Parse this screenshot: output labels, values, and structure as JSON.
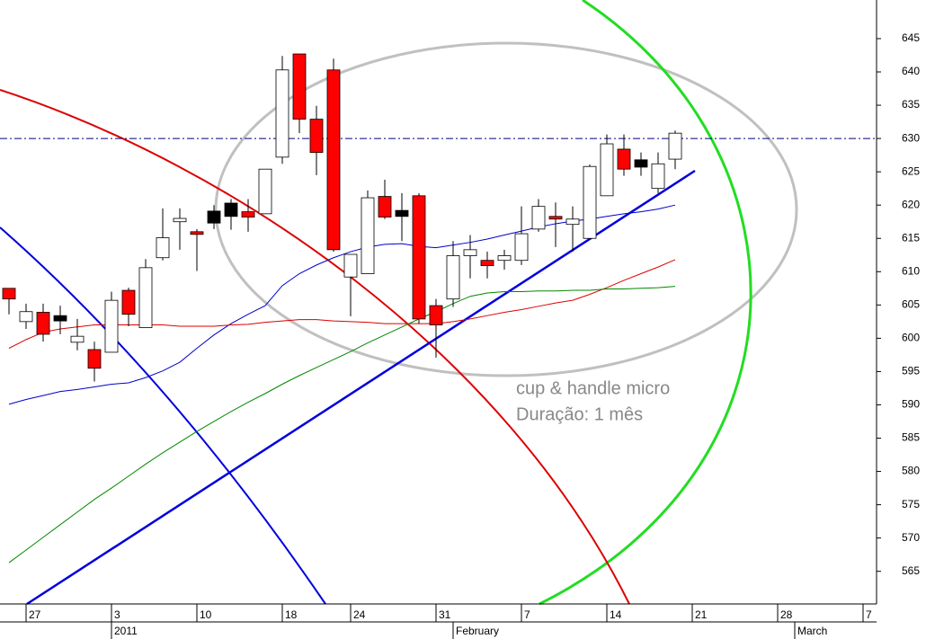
{
  "chart_data": {
    "type": "candlestick",
    "annotations": [
      "cup & handle micro",
      "Duração: 1 mês"
    ],
    "categories": [
      null,
      "27",
      null,
      null,
      null,
      null,
      "3",
      null,
      null,
      null,
      null,
      "10",
      null,
      null,
      null,
      null,
      "18",
      null,
      null,
      null,
      "24",
      null,
      null,
      null,
      null,
      "31",
      null,
      null,
      null,
      null,
      "7",
      null,
      null,
      null,
      null,
      "14",
      null,
      null,
      null,
      null,
      "21",
      null,
      null,
      null,
      null,
      "28",
      null,
      null,
      null,
      null,
      "7"
    ],
    "periods": [
      null,
      null,
      null,
      null,
      null,
      null,
      "2011",
      null,
      null,
      null,
      null,
      null,
      null,
      null,
      null,
      null,
      null,
      null,
      null,
      null,
      null,
      null,
      null,
      null,
      null,
      null,
      "February",
      null,
      null,
      null,
      null,
      null,
      null,
      null,
      null,
      null,
      null,
      null,
      null,
      null,
      null,
      null,
      null,
      null,
      null,
      null,
      "March",
      null,
      null,
      null,
      null
    ],
    "open": [
      607.5,
      602.5,
      603.9,
      603.4,
      599.4,
      598.3,
      597.9,
      607.2,
      601.6,
      612.1,
      617.5,
      616.0,
      619.1,
      620.3,
      619.0,
      618.7,
      627.2,
      642.7,
      632.9,
      640.3,
      609.2,
      609.7,
      621.3,
      619.2,
      621.4,
      604.9,
      605.9,
      612.4,
      611.7,
      611.7,
      611.7,
      616.4,
      618.3,
      617.1,
      615.0,
      621.4,
      628.4,
      626.8,
      622.5,
      626.9,
      null,
      null,
      null,
      null,
      null,
      null,
      null,
      null,
      null,
      null,
      null
    ],
    "high": [
      607.5,
      605.2,
      605.2,
      604.9,
      602.9,
      599.5,
      607.0,
      607.6,
      611.9,
      619.5,
      619.5,
      616.4,
      620.0,
      620.9,
      620.9,
      625.4,
      642.4,
      642.7,
      634.9,
      642.0,
      612.6,
      622.2,
      623.8,
      621.8,
      621.8,
      605.9,
      614.6,
      615.5,
      613.0,
      613.3,
      619.8,
      620.9,
      620.4,
      619.8,
      626.1,
      630.6,
      630.6,
      627.9,
      627.9,
      631.2,
      null,
      null,
      null,
      null,
      null,
      null,
      null,
      null,
      null,
      null,
      null
    ],
    "low": [
      603.6,
      601.4,
      599.5,
      600.6,
      598.2,
      593.5,
      597.9,
      601.8,
      601.6,
      611.7,
      613.3,
      610.1,
      616.4,
      616.3,
      616.0,
      618.7,
      626.2,
      630.8,
      624.5,
      613.0,
      603.3,
      609.7,
      617.9,
      614.6,
      602.2,
      597.1,
      604.7,
      609.0,
      609.0,
      610.3,
      611.0,
      616.0,
      613.7,
      613.0,
      615.0,
      621.4,
      624.4,
      624.4,
      621.8,
      625.4,
      null,
      null,
      null,
      null,
      null,
      null,
      null,
      null,
      null,
      null,
      null
    ],
    "close": [
      605.9,
      604.0,
      600.6,
      602.6,
      600.3,
      595.5,
      605.7,
      603.6,
      610.6,
      615.1,
      618.0,
      615.6,
      617.3,
      618.3,
      618.2,
      625.4,
      640.3,
      632.9,
      627.9,
      613.3,
      612.6,
      621.1,
      618.2,
      618.3,
      602.9,
      602.0,
      612.4,
      613.3,
      610.9,
      612.4,
      615.7,
      619.8,
      617.9,
      617.9,
      625.8,
      629.2,
      625.4,
      625.7,
      626.2,
      630.8,
      null,
      null,
      null,
      null,
      null,
      null,
      null,
      null,
      null,
      null,
      null
    ],
    "body_colors": [
      "#ff0000",
      "#ffffff",
      "#ff0000",
      "#000000",
      "#ffffff",
      "#ff0000",
      "#ffffff",
      "#ff0000",
      "#ffffff",
      "#ffffff",
      "#ffffff",
      "#ff0000",
      "#000000",
      "#000000",
      "#ff0000",
      "#ffffff",
      "#ffffff",
      "#ff0000",
      "#ff0000",
      "#ff0000",
      "#ffffff",
      "#ffffff",
      "#ff0000",
      "#000000",
      "#ff0000",
      "#ff0000",
      "#ffffff",
      "#ffffff",
      "#ff0000",
      "#ffffff",
      "#ffffff",
      "#ffffff",
      "#ff0000",
      "#ffffff",
      "#ffffff",
      "#ffffff",
      "#ff0000",
      "#000000",
      "#ffffff",
      "#ffffff",
      null,
      null,
      null,
      null,
      null,
      null,
      null,
      null,
      null,
      null,
      null
    ],
    "series": [
      {
        "color": "#0000cc",
        "values": [
          590.1,
          590.8,
          591.4,
          592.0,
          592.3,
          592.7,
          593.1,
          593.3,
          594.1,
          595.1,
          596.4,
          598.5,
          600.5,
          602.2,
          603.6,
          604.9,
          607.9,
          609.7,
          611.0,
          612.1,
          613.0,
          613.7,
          614.1,
          614.2,
          613.8,
          613.6,
          614.0,
          614.4,
          614.9,
          615.5,
          616.1,
          616.7,
          617.2,
          617.6,
          617.9,
          618.3,
          618.7,
          619.0,
          619.4,
          620.0,
          null,
          null,
          null,
          null,
          null,
          null,
          null,
          null,
          null,
          null,
          null
        ]
      },
      {
        "color": "#dd0000",
        "values": [
          598.5,
          599.8,
          600.9,
          601.4,
          601.7,
          602.0,
          602.0,
          602.0,
          602.0,
          602.0,
          601.8,
          601.8,
          601.8,
          602.0,
          602.1,
          602.4,
          602.6,
          602.8,
          602.8,
          602.6,
          602.5,
          602.4,
          602.2,
          602.2,
          602.2,
          602.2,
          602.5,
          602.9,
          603.4,
          603.9,
          604.3,
          604.8,
          605.3,
          605.7,
          606.6,
          607.6,
          608.7,
          609.7,
          610.7,
          611.8,
          null,
          null,
          null,
          null,
          null,
          null,
          null,
          null,
          null,
          null,
          null
        ]
      },
      {
        "color": "#008800",
        "values": [
          566.3,
          568.2,
          570.1,
          572.0,
          573.9,
          575.8,
          577.5,
          579.3,
          581.1,
          582.8,
          584.4,
          586.0,
          587.5,
          589.0,
          590.4,
          591.7,
          593.1,
          594.4,
          595.6,
          596.8,
          598.0,
          599.3,
          600.5,
          601.7,
          602.9,
          604.0,
          605.2,
          606.3,
          606.8,
          607.0,
          607.0,
          607.1,
          607.1,
          607.2,
          607.2,
          607.4,
          607.4,
          607.5,
          607.6,
          607.8,
          null,
          null,
          null,
          null,
          null,
          null,
          null,
          null,
          null,
          null,
          null
        ]
      }
    ],
    "hline": 630,
    "hline_color": "#000080",
    "ylim": [
      560.1,
      650.8
    ],
    "yticks": [
      565,
      570,
      575,
      580,
      585,
      590,
      595,
      600,
      605,
      610,
      615,
      620,
      625,
      630,
      635,
      640,
      645
    ]
  }
}
